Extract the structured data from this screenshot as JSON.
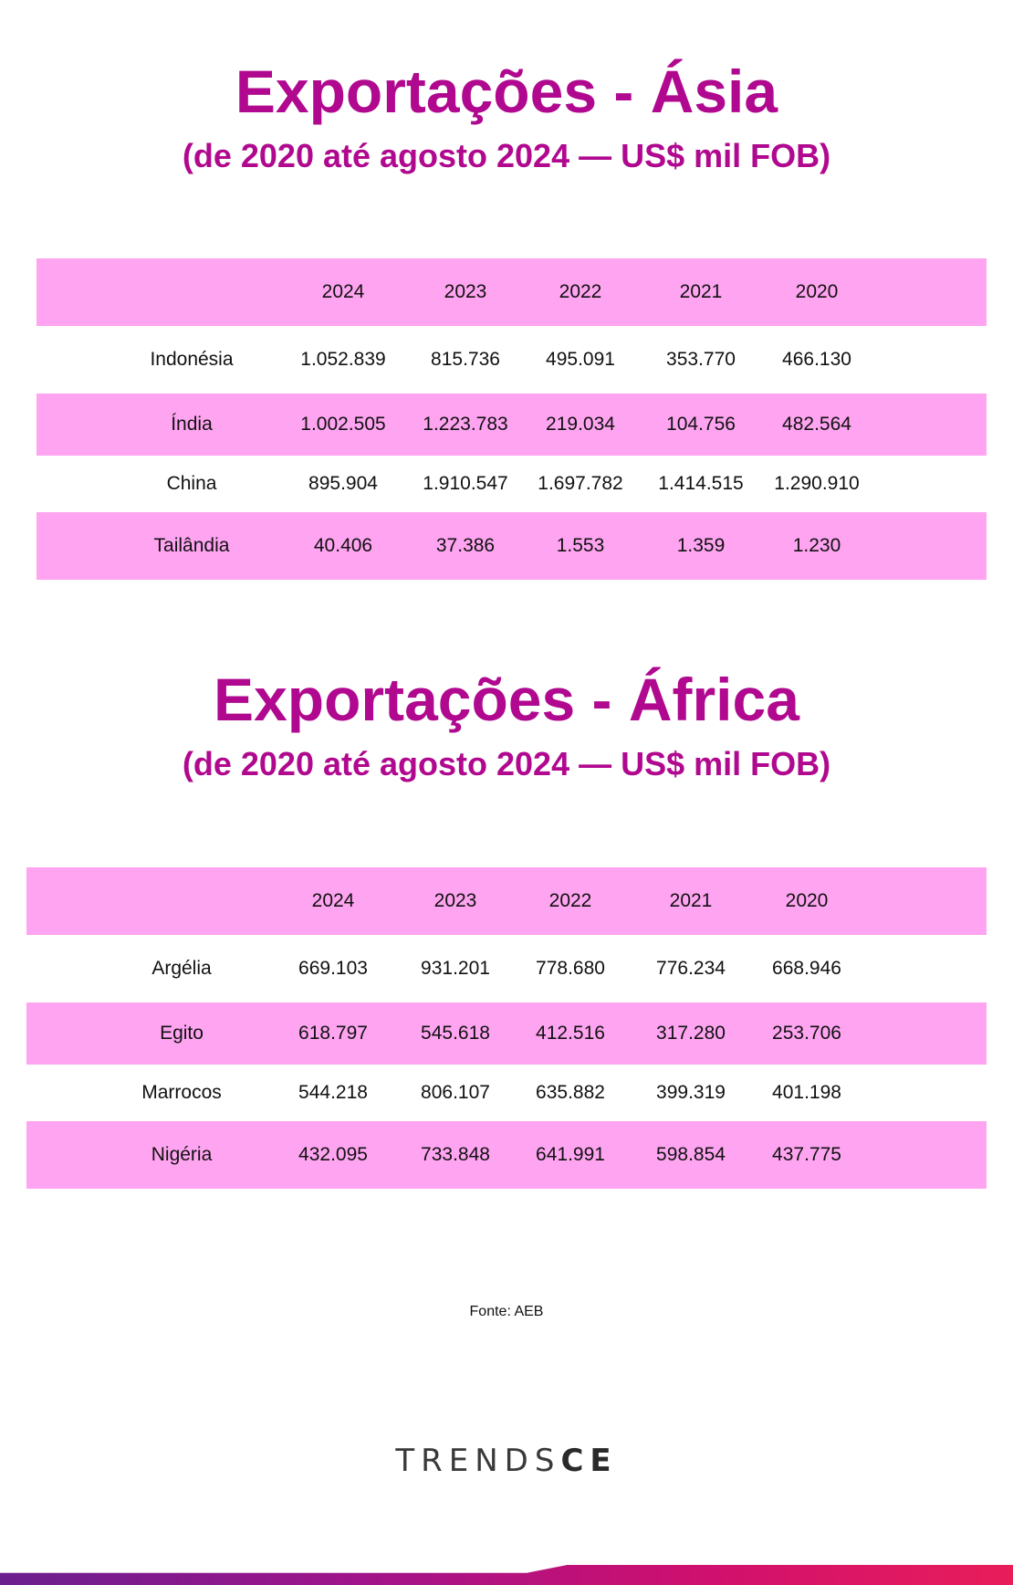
{
  "asia": {
    "title": "Exportações - Ásia",
    "subtitle": "(de 2020 até agosto 2024 — US$ mil FOB)"
  },
  "africa": {
    "title": "Exportações - África",
    "subtitle": "(de 2020 até agosto 2024 — US$ mil FOB)"
  },
  "source": "Fonte: AEB",
  "logo": {
    "light": "TRENDS",
    "bold": "CE"
  },
  "colors": {
    "title": "#b0088f",
    "row_highlight": "#ffa4f1",
    "text": "#111111"
  },
  "chart_data": [
    {
      "type": "table",
      "title": "Exportações - Ásia",
      "subtitle": "(de 2020 até agosto 2024 — US$ mil FOB)",
      "columns": [
        "",
        "2024",
        "2023",
        "2022",
        "2021",
        "2020"
      ],
      "rows": [
        [
          "Indonésia",
          "1.052.839",
          "815.736",
          "495.091",
          "353.770",
          "466.130"
        ],
        [
          "Índia",
          "1.002.505",
          "1.223.783",
          "219.034",
          "104.756",
          "482.564"
        ],
        [
          "China",
          "895.904",
          "1.910.547",
          "1.697.782",
          "1.414.515",
          "1.290.910"
        ],
        [
          "Tailândia",
          "40.406",
          "37.386",
          "1.553",
          "1.359",
          "1.230"
        ]
      ]
    },
    {
      "type": "table",
      "title": "Exportações - África",
      "subtitle": "(de 2020 até agosto 2024 — US$ mil FOB)",
      "columns": [
        "",
        "2024",
        "2023",
        "2022",
        "2021",
        "2020"
      ],
      "rows": [
        [
          "Argélia",
          "669.103",
          "931.201",
          "778.680",
          "776.234",
          "668.946"
        ],
        [
          "Egito",
          "618.797",
          "545.618",
          "412.516",
          "317.280",
          "253.706"
        ],
        [
          "Marrocos",
          "544.218",
          "806.107",
          "635.882",
          "399.319",
          "401.198"
        ],
        [
          "Nigéria",
          "432.095",
          "733.848",
          "641.991",
          "598.854",
          "437.775"
        ]
      ]
    }
  ]
}
